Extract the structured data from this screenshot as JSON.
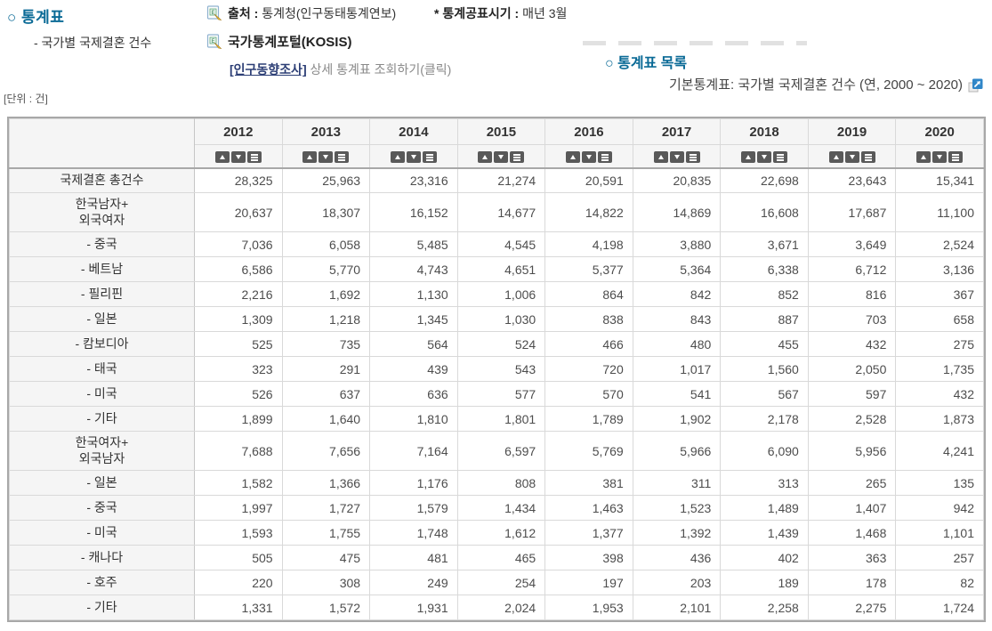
{
  "colors": {
    "accent_teal": "#0a6a96",
    "link_navy": "#2c3e75",
    "sort_button_gray": "#595959",
    "header_bg": "#f5f5f5",
    "outer_border": "#a8a8a8",
    "extlink_blue": "#2f86c8"
  },
  "header": {
    "section_title": "○ 통계표",
    "section_subtitle": "- 국가별 국제결혼 건수",
    "source_label": "출처 :",
    "source_value": "통계청(인구동태통계연보)",
    "publish_label": "* 통계공표시기 :",
    "publish_value": "매년 3월",
    "kosis_label": "국가통계포털(KOSIS)",
    "survey_link": "[인구동향조사]",
    "survey_link_rest": " 상세 통계표 조회하기(클릭)",
    "list_section_title": "○ 통계표 목록",
    "list_item_text": "기본통계표: 국가별 국제결혼 건수 (연, 2000 ~ 2020)",
    "unit_label": "[단위 : 건]"
  },
  "icons": {
    "document_icon": "document-with-pencil",
    "external_link_icon": "arrow-up-right-box",
    "sort_asc": "up-triangle",
    "sort_desc": "down-triangle",
    "column_menu": "hamburger-lines"
  },
  "chart_data": {
    "type": "table",
    "title": "국가별 국제결혼 건수",
    "unit": "건",
    "years": [
      "2012",
      "2013",
      "2014",
      "2015",
      "2016",
      "2017",
      "2018",
      "2019",
      "2020"
    ],
    "rows": [
      {
        "label_lines": [
          "국제결혼 총건수"
        ],
        "values": [
          "28,325",
          "25,963",
          "23,316",
          "21,274",
          "20,591",
          "20,835",
          "22,698",
          "23,643",
          "15,341"
        ]
      },
      {
        "label_lines": [
          "한국남자+",
          "외국여자"
        ],
        "values": [
          "20,637",
          "18,307",
          "16,152",
          "14,677",
          "14,822",
          "14,869",
          "16,608",
          "17,687",
          "11,100"
        ]
      },
      {
        "label_lines": [
          "- 중국"
        ],
        "values": [
          "7,036",
          "6,058",
          "5,485",
          "4,545",
          "4,198",
          "3,880",
          "3,671",
          "3,649",
          "2,524"
        ]
      },
      {
        "label_lines": [
          "- 베트남"
        ],
        "values": [
          "6,586",
          "5,770",
          "4,743",
          "4,651",
          "5,377",
          "5,364",
          "6,338",
          "6,712",
          "3,136"
        ]
      },
      {
        "label_lines": [
          "- 필리핀"
        ],
        "values": [
          "2,216",
          "1,692",
          "1,130",
          "1,006",
          "864",
          "842",
          "852",
          "816",
          "367"
        ]
      },
      {
        "label_lines": [
          "- 일본"
        ],
        "values": [
          "1,309",
          "1,218",
          "1,345",
          "1,030",
          "838",
          "843",
          "887",
          "703",
          "658"
        ]
      },
      {
        "label_lines": [
          "- 캄보디아"
        ],
        "values": [
          "525",
          "735",
          "564",
          "524",
          "466",
          "480",
          "455",
          "432",
          "275"
        ]
      },
      {
        "label_lines": [
          "- 태국"
        ],
        "values": [
          "323",
          "291",
          "439",
          "543",
          "720",
          "1,017",
          "1,560",
          "2,050",
          "1,735"
        ]
      },
      {
        "label_lines": [
          "- 미국"
        ],
        "values": [
          "526",
          "637",
          "636",
          "577",
          "570",
          "541",
          "567",
          "597",
          "432"
        ]
      },
      {
        "label_lines": [
          "- 기타"
        ],
        "values": [
          "1,899",
          "1,640",
          "1,810",
          "1,801",
          "1,789",
          "1,902",
          "2,178",
          "2,528",
          "1,873"
        ]
      },
      {
        "label_lines": [
          "한국여자+",
          "외국남자"
        ],
        "values": [
          "7,688",
          "7,656",
          "7,164",
          "6,597",
          "5,769",
          "5,966",
          "6,090",
          "5,956",
          "4,241"
        ]
      },
      {
        "label_lines": [
          "- 일본"
        ],
        "values": [
          "1,582",
          "1,366",
          "1,176",
          "808",
          "381",
          "311",
          "313",
          "265",
          "135"
        ]
      },
      {
        "label_lines": [
          "- 중국"
        ],
        "values": [
          "1,997",
          "1,727",
          "1,579",
          "1,434",
          "1,463",
          "1,523",
          "1,489",
          "1,407",
          "942"
        ]
      },
      {
        "label_lines": [
          "- 미국"
        ],
        "values": [
          "1,593",
          "1,755",
          "1,748",
          "1,612",
          "1,377",
          "1,392",
          "1,439",
          "1,468",
          "1,101"
        ]
      },
      {
        "label_lines": [
          "- 캐나다"
        ],
        "values": [
          "505",
          "475",
          "481",
          "465",
          "398",
          "436",
          "402",
          "363",
          "257"
        ]
      },
      {
        "label_lines": [
          "- 호주"
        ],
        "values": [
          "220",
          "308",
          "249",
          "254",
          "197",
          "203",
          "189",
          "178",
          "82"
        ]
      },
      {
        "label_lines": [
          "- 기타"
        ],
        "values": [
          "1,331",
          "1,572",
          "1,931",
          "2,024",
          "1,953",
          "2,101",
          "2,258",
          "2,275",
          "1,724"
        ]
      }
    ]
  }
}
